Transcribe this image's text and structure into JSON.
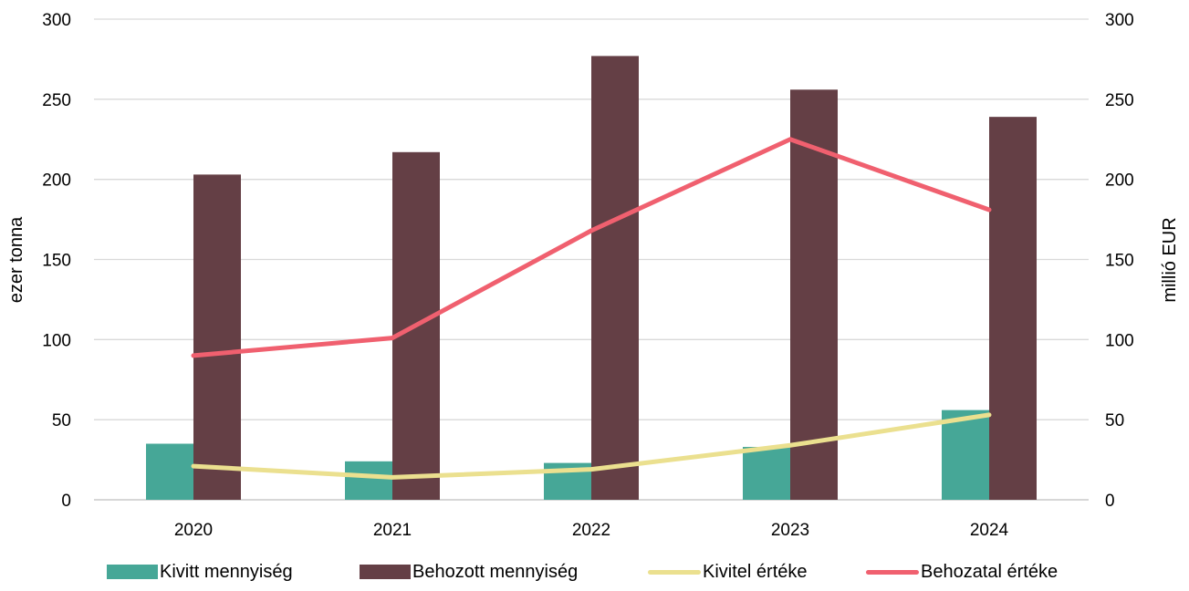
{
  "chart_data": {
    "type": "bar",
    "categories": [
      "2020",
      "2021",
      "2022",
      "2023",
      "2024"
    ],
    "series": [
      {
        "name": "Kivitt mennyiség",
        "type": "bar",
        "axis": "left",
        "color": "#46A797",
        "values": [
          35,
          24,
          23,
          33,
          56
        ]
      },
      {
        "name": "Behozott mennyiség",
        "type": "bar",
        "axis": "left",
        "color": "#643F45",
        "values": [
          203,
          217,
          277,
          256,
          239
        ]
      },
      {
        "name": "Kivitel értéke",
        "type": "line",
        "axis": "right",
        "color": "#EBE08F",
        "values": [
          21,
          14,
          19,
          34,
          53
        ]
      },
      {
        "name": "Behozatal értéke",
        "type": "line",
        "axis": "right",
        "color": "#F0606F",
        "values": [
          90,
          101,
          168,
          225,
          181
        ]
      }
    ],
    "ylabel": "ezer tonna",
    "y2label": "millió EUR",
    "ylim": [
      0,
      300
    ],
    "y2lim": [
      0,
      300
    ],
    "yticks": [
      "0",
      "50",
      "100",
      "150",
      "200",
      "250",
      "300"
    ],
    "y2ticks": [
      "0",
      "50",
      "100",
      "150",
      "200",
      "250",
      "300"
    ],
    "grid": true,
    "legend_position": "bottom"
  }
}
